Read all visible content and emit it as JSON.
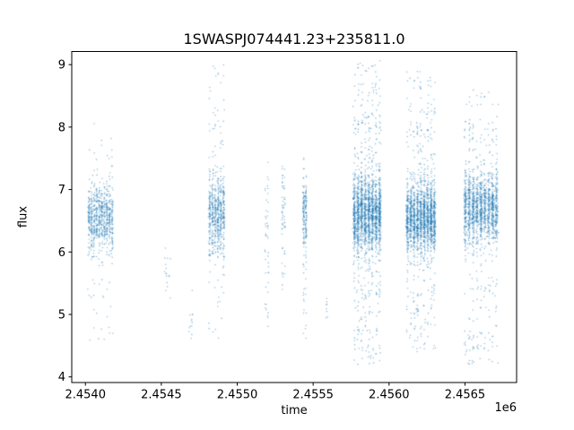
{
  "figure": {
    "background": "#ffffff"
  },
  "chart_data": {
    "type": "scatter",
    "title": "1SWASPJ074441.23+235811.0",
    "xlabel": "time",
    "ylabel": "flux",
    "x_offset_factor": "1e6",
    "grid": false,
    "legend": false,
    "xlim": [
      2453910,
      2456840
    ],
    "ylim": [
      3.91,
      9.21
    ],
    "x_ticks": [
      {
        "value": 2454000,
        "label": "2.4540"
      },
      {
        "value": 2454500,
        "label": "2.4545"
      },
      {
        "value": 2455000,
        "label": "2.4550"
      },
      {
        "value": 2455500,
        "label": "2.4555"
      },
      {
        "value": 2456000,
        "label": "2.4560"
      },
      {
        "value": 2456500,
        "label": "2.4565"
      }
    ],
    "y_ticks": [
      {
        "value": 4,
        "label": "4"
      },
      {
        "value": 5,
        "label": "5"
      },
      {
        "value": 6,
        "label": "6"
      },
      {
        "value": 7,
        "label": "7"
      },
      {
        "value": 8,
        "label": "8"
      },
      {
        "value": 9,
        "label": "9"
      }
    ],
    "point_color": "#1f77b4",
    "point_opacity": 0.45,
    "point_radius": 0.8,
    "clusters": [
      {
        "x0": 2454015,
        "x1": 2454185,
        "cols": 10,
        "core": {
          "n": 700,
          "mean": 6.55,
          "std": 0.27
        },
        "tails": [
          {
            "n": 50,
            "min": 5.2,
            "max": 7.6
          },
          {
            "n": 12,
            "min": 4.45,
            "max": 5.2
          },
          {
            "n": 6,
            "min": 7.6,
            "max": 8.15
          }
        ]
      },
      {
        "x0": 2454520,
        "x1": 2454570,
        "cols": 2,
        "core": {
          "n": 12,
          "mean": 5.6,
          "std": 0.25
        },
        "tails": [
          {
            "n": 4,
            "min": 5.1,
            "max": 6.0
          }
        ]
      },
      {
        "x0": 2454680,
        "x1": 2454710,
        "cols": 2,
        "core": {
          "n": 10,
          "mean": 4.85,
          "std": 0.25
        },
        "tails": [
          {
            "n": 3,
            "min": 4.4,
            "max": 5.3
          }
        ]
      },
      {
        "x0": 2454810,
        "x1": 2454920,
        "cols": 6,
        "core": {
          "n": 550,
          "mean": 6.6,
          "std": 0.3
        },
        "tails": [
          {
            "n": 60,
            "min": 5.6,
            "max": 8.0
          },
          {
            "n": 25,
            "min": 7.9,
            "max": 9.0
          },
          {
            "n": 15,
            "min": 4.6,
            "max": 5.6
          }
        ]
      },
      {
        "x0": 2455180,
        "x1": 2455210,
        "cols": 2,
        "core": {
          "n": 35,
          "mean": 6.4,
          "std": 0.5
        },
        "tails": [
          {
            "n": 12,
            "min": 4.7,
            "max": 5.9
          }
        ]
      },
      {
        "x0": 2455290,
        "x1": 2455320,
        "cols": 2,
        "core": {
          "n": 50,
          "mean": 6.7,
          "std": 0.35
        },
        "tails": [
          {
            "n": 8,
            "min": 5.0,
            "max": 6.0
          }
        ]
      },
      {
        "x0": 2455430,
        "x1": 2455460,
        "cols": 2,
        "core": {
          "n": 160,
          "mean": 6.6,
          "std": 0.25
        },
        "tails": [
          {
            "n": 25,
            "min": 4.6,
            "max": 6.1
          },
          {
            "n": 6,
            "min": 7.1,
            "max": 7.5
          }
        ]
      },
      {
        "x0": 2455580,
        "x1": 2455600,
        "cols": 1,
        "core": {
          "n": 8,
          "mean": 5.0,
          "std": 0.15
        },
        "tails": []
      },
      {
        "x0": 2455760,
        "x1": 2455950,
        "cols": 8,
        "core": {
          "n": 1600,
          "mean": 6.6,
          "std": 0.3
        },
        "tails": [
          {
            "n": 200,
            "min": 5.3,
            "max": 8.2
          },
          {
            "n": 80,
            "min": 7.9,
            "max": 9.1
          },
          {
            "n": 90,
            "min": 4.2,
            "max": 5.4
          }
        ]
      },
      {
        "x0": 2456110,
        "x1": 2456310,
        "cols": 9,
        "core": {
          "n": 1600,
          "mean": 6.55,
          "std": 0.28
        },
        "tails": [
          {
            "n": 180,
            "min": 5.3,
            "max": 8.0
          },
          {
            "n": 60,
            "min": 7.9,
            "max": 8.9
          },
          {
            "n": 70,
            "min": 4.4,
            "max": 5.4
          }
        ]
      },
      {
        "x0": 2456490,
        "x1": 2456720,
        "cols": 9,
        "core": {
          "n": 1300,
          "mean": 6.7,
          "std": 0.28
        },
        "tails": [
          {
            "n": 150,
            "min": 5.4,
            "max": 8.0
          },
          {
            "n": 40,
            "min": 7.8,
            "max": 8.6
          },
          {
            "n": 80,
            "min": 4.2,
            "max": 5.5
          }
        ]
      }
    ]
  }
}
